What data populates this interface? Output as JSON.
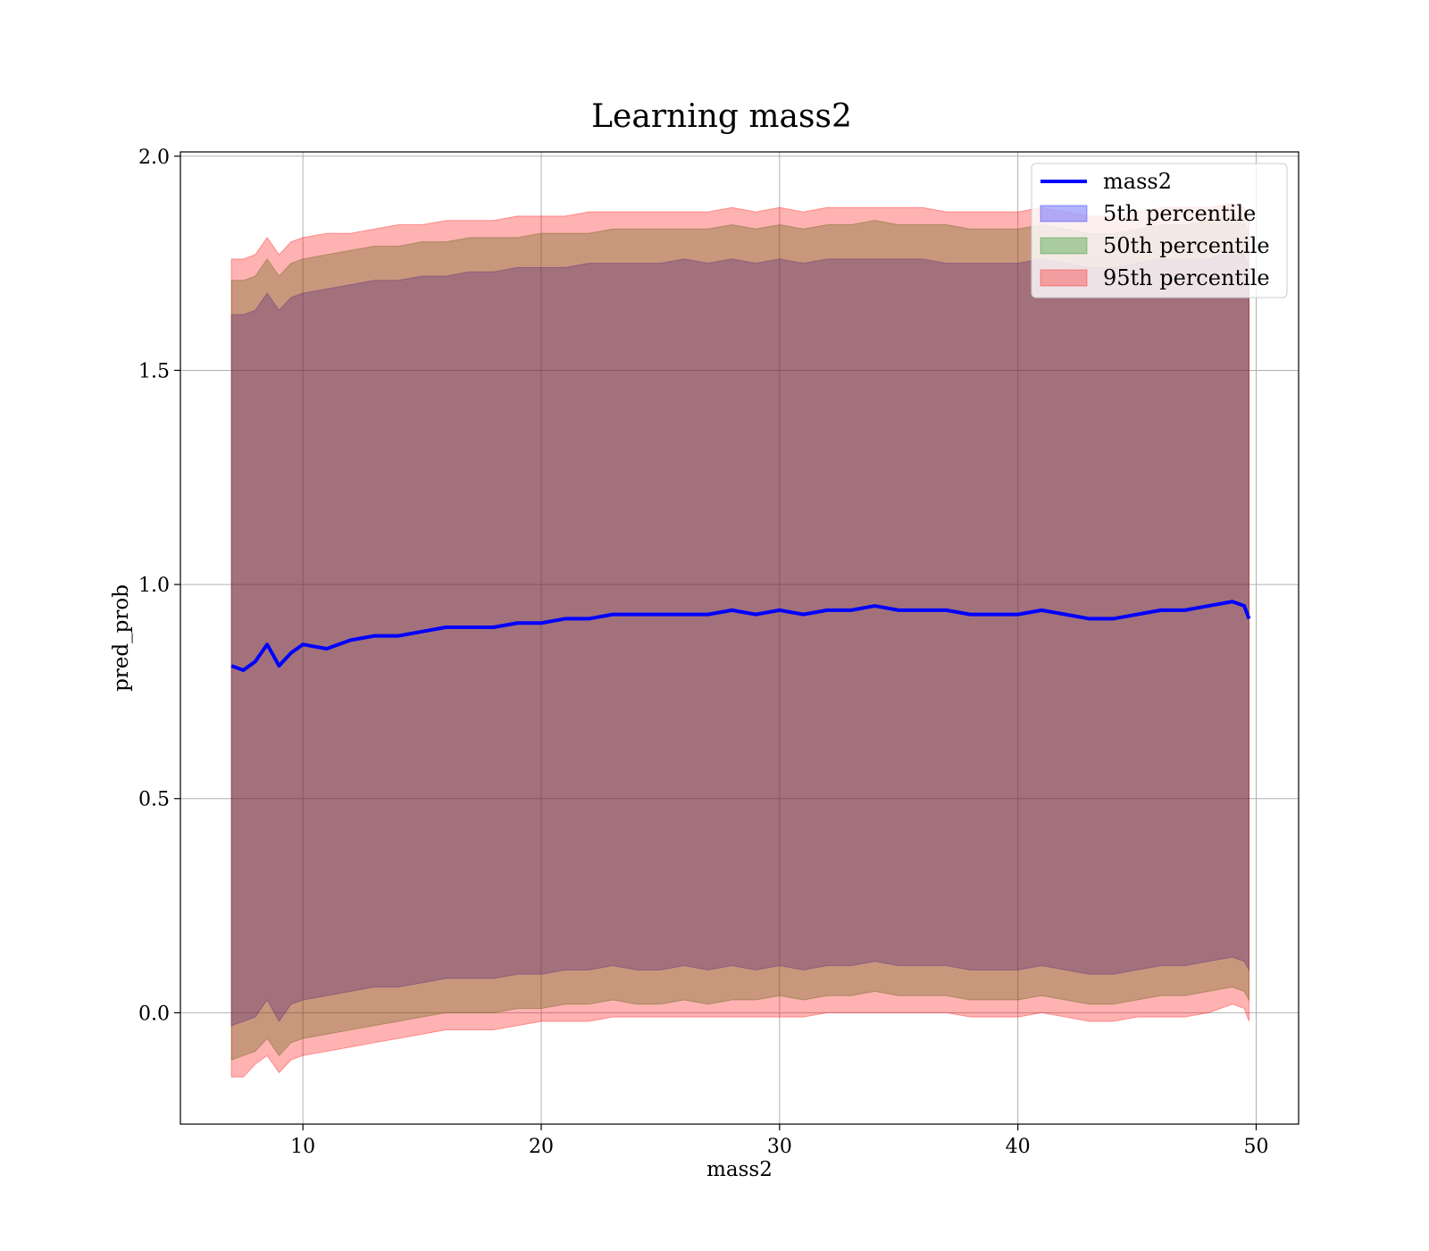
{
  "chart_data": {
    "type": "line",
    "title": "Learning mass2",
    "xlabel": "mass2",
    "ylabel": "pred_prob",
    "xlim": [
      4.86,
      51.78
    ],
    "ylim": [
      -0.26,
      2.01
    ],
    "xticks": [
      10,
      20,
      30,
      40,
      50
    ],
    "yticks": [
      0.0,
      0.5,
      1.0,
      1.5,
      2.0
    ],
    "xtick_labels": [
      "10",
      "20",
      "30",
      "40",
      "50"
    ],
    "ytick_labels": [
      "0.0",
      "0.5",
      "1.0",
      "1.5",
      "2.0"
    ],
    "grid": true,
    "legend_position": "upper right",
    "x": [
      7.0,
      7.5,
      8.0,
      8.5,
      9.0,
      9.5,
      10.0,
      11.0,
      12.0,
      13.0,
      14.0,
      15.0,
      16.0,
      17.0,
      18.0,
      19.0,
      20.0,
      21.0,
      22.0,
      23.0,
      24.0,
      25.0,
      26.0,
      27.0,
      28.0,
      29.0,
      30.0,
      31.0,
      32.0,
      33.0,
      34.0,
      35.0,
      36.0,
      37.0,
      38.0,
      39.0,
      40.0,
      41.0,
      42.0,
      43.0,
      44.0,
      45.0,
      46.0,
      47.0,
      48.0,
      49.0,
      49.5,
      49.7
    ],
    "series": [
      {
        "name": "mass2",
        "kind": "line",
        "color": "#0000ff",
        "values": [
          0.81,
          0.8,
          0.82,
          0.86,
          0.81,
          0.84,
          0.86,
          0.85,
          0.87,
          0.88,
          0.88,
          0.89,
          0.9,
          0.9,
          0.9,
          0.91,
          0.91,
          0.92,
          0.92,
          0.93,
          0.93,
          0.93,
          0.93,
          0.93,
          0.94,
          0.93,
          0.94,
          0.93,
          0.94,
          0.94,
          0.95,
          0.94,
          0.94,
          0.94,
          0.93,
          0.93,
          0.93,
          0.94,
          0.93,
          0.92,
          0.92,
          0.93,
          0.94,
          0.94,
          0.95,
          0.96,
          0.95,
          0.92
        ]
      },
      {
        "name": "5th percentile",
        "kind": "band",
        "color": "#0000ff",
        "lower": [
          -0.03,
          -0.02,
          -0.01,
          0.03,
          -0.02,
          0.02,
          0.03,
          0.04,
          0.05,
          0.06,
          0.06,
          0.07,
          0.08,
          0.08,
          0.08,
          0.09,
          0.09,
          0.1,
          0.1,
          0.11,
          0.1,
          0.1,
          0.11,
          0.1,
          0.11,
          0.1,
          0.11,
          0.1,
          0.11,
          0.11,
          0.12,
          0.11,
          0.11,
          0.11,
          0.1,
          0.1,
          0.1,
          0.11,
          0.1,
          0.09,
          0.09,
          0.1,
          0.11,
          0.11,
          0.12,
          0.13,
          0.12,
          0.1
        ],
        "upper": [
          1.63,
          1.63,
          1.64,
          1.68,
          1.64,
          1.67,
          1.68,
          1.69,
          1.7,
          1.71,
          1.71,
          1.72,
          1.72,
          1.73,
          1.73,
          1.74,
          1.74,
          1.74,
          1.75,
          1.75,
          1.75,
          1.75,
          1.76,
          1.75,
          1.76,
          1.75,
          1.76,
          1.75,
          1.76,
          1.76,
          1.76,
          1.76,
          1.76,
          1.75,
          1.75,
          1.75,
          1.75,
          1.76,
          1.75,
          1.74,
          1.74,
          1.75,
          1.76,
          1.76,
          1.76,
          1.78,
          1.77,
          1.74
        ]
      },
      {
        "name": "50th percentile",
        "kind": "band",
        "color": "#008000",
        "lower": [
          -0.11,
          -0.1,
          -0.09,
          -0.06,
          -0.1,
          -0.07,
          -0.06,
          -0.05,
          -0.04,
          -0.03,
          -0.02,
          -0.01,
          0.0,
          0.0,
          0.0,
          0.01,
          0.01,
          0.02,
          0.02,
          0.03,
          0.02,
          0.02,
          0.03,
          0.02,
          0.03,
          0.03,
          0.04,
          0.03,
          0.04,
          0.04,
          0.05,
          0.04,
          0.04,
          0.04,
          0.03,
          0.03,
          0.03,
          0.04,
          0.03,
          0.02,
          0.02,
          0.03,
          0.04,
          0.04,
          0.05,
          0.06,
          0.05,
          0.03
        ],
        "upper": [
          1.71,
          1.71,
          1.72,
          1.76,
          1.72,
          1.75,
          1.76,
          1.77,
          1.78,
          1.79,
          1.79,
          1.8,
          1.8,
          1.81,
          1.81,
          1.81,
          1.82,
          1.82,
          1.82,
          1.83,
          1.83,
          1.83,
          1.83,
          1.83,
          1.84,
          1.83,
          1.84,
          1.83,
          1.84,
          1.84,
          1.85,
          1.84,
          1.84,
          1.84,
          1.83,
          1.83,
          1.83,
          1.84,
          1.83,
          1.82,
          1.82,
          1.83,
          1.84,
          1.84,
          1.85,
          1.86,
          1.85,
          1.82
        ]
      },
      {
        "name": "95th percentile",
        "kind": "band",
        "color": "#ff0000",
        "lower": [
          -0.15,
          -0.15,
          -0.12,
          -0.1,
          -0.14,
          -0.11,
          -0.1,
          -0.09,
          -0.08,
          -0.07,
          -0.06,
          -0.05,
          -0.04,
          -0.04,
          -0.04,
          -0.03,
          -0.02,
          -0.02,
          -0.02,
          -0.01,
          -0.01,
          -0.01,
          -0.01,
          -0.01,
          -0.01,
          -0.01,
          -0.01,
          -0.01,
          0.0,
          0.0,
          0.0,
          0.0,
          0.0,
          0.0,
          -0.01,
          -0.01,
          -0.01,
          0.0,
          -0.01,
          -0.02,
          -0.02,
          -0.01,
          -0.01,
          -0.01,
          0.0,
          0.02,
          0.01,
          -0.02
        ],
        "upper": [
          1.76,
          1.76,
          1.77,
          1.81,
          1.77,
          1.8,
          1.81,
          1.82,
          1.82,
          1.83,
          1.84,
          1.84,
          1.85,
          1.85,
          1.85,
          1.86,
          1.86,
          1.86,
          1.87,
          1.87,
          1.87,
          1.87,
          1.87,
          1.87,
          1.88,
          1.87,
          1.88,
          1.87,
          1.88,
          1.88,
          1.88,
          1.88,
          1.88,
          1.87,
          1.87,
          1.87,
          1.87,
          1.88,
          1.87,
          1.86,
          1.86,
          1.87,
          1.88,
          1.88,
          1.88,
          1.89,
          1.88,
          1.86
        ]
      }
    ]
  }
}
